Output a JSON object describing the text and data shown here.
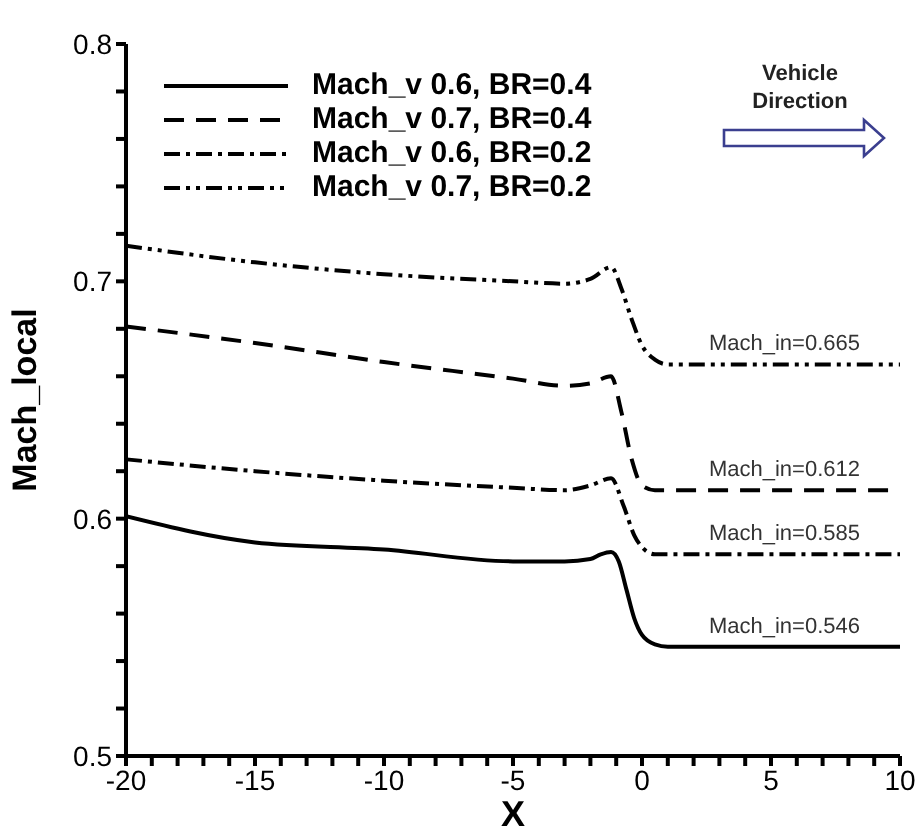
{
  "chart_data": {
    "type": "line",
    "xlabel": "X",
    "ylabel": "Mach_local",
    "xlim": [
      -20,
      10
    ],
    "ylim": [
      0.5,
      0.8
    ],
    "xticks": [
      -20,
      {
        "value": -19,
        "label": null
      },
      {
        "value": -18,
        "label": null
      },
      {
        "value": -17,
        "label": null
      },
      {
        "value": -16,
        "label": null
      },
      -15,
      {
        "value": -14,
        "label": null
      },
      {
        "value": -13,
        "label": null
      },
      {
        "value": -12,
        "label": null
      },
      {
        "value": -11,
        "label": null
      },
      -10,
      {
        "value": -9,
        "label": null
      },
      {
        "value": -8,
        "label": null
      },
      {
        "value": -7,
        "label": null
      },
      {
        "value": -6,
        "label": null
      },
      -5,
      {
        "value": -4,
        "label": null
      },
      {
        "value": -3,
        "label": null
      },
      {
        "value": -2,
        "label": null
      },
      {
        "value": -1,
        "label": null
      },
      0,
      {
        "value": 1,
        "label": null
      },
      {
        "value": 2,
        "label": null
      },
      {
        "value": 3,
        "label": null
      },
      {
        "value": 4,
        "label": null
      },
      5,
      {
        "value": 6,
        "label": null
      },
      {
        "value": 7,
        "label": null
      },
      {
        "value": 8,
        "label": null
      },
      {
        "value": 9,
        "label": null
      },
      10
    ],
    "yticks": [
      0.5,
      {
        "value": 0.52,
        "label": null
      },
      {
        "value": 0.54,
        "label": null
      },
      {
        "value": 0.56,
        "label": null
      },
      {
        "value": 0.58,
        "label": null
      },
      0.6,
      {
        "value": 0.62,
        "label": null
      },
      {
        "value": 0.64,
        "label": null
      },
      {
        "value": 0.66,
        "label": null
      },
      {
        "value": 0.68,
        "label": null
      },
      0.7,
      {
        "value": 0.72,
        "label": null
      },
      {
        "value": 0.74,
        "label": null
      },
      {
        "value": 0.76,
        "label": null
      },
      {
        "value": 0.78,
        "label": null
      },
      0.8
    ],
    "grid": false,
    "legend": "top left",
    "marker": "none",
    "series": [
      {
        "name": "Mach_v 0.6, BR=0.4",
        "color": "#000000",
        "line_style": "solid",
        "x": [
          -20,
          -15,
          -10,
          -5,
          -3,
          -2,
          -1.6,
          -1.2,
          -0.9,
          -0.6,
          -0.3,
          0,
          0.5,
          1,
          10
        ],
        "values": [
          0.601,
          0.59,
          0.587,
          0.582,
          0.582,
          0.583,
          0.585,
          0.586,
          0.582,
          0.57,
          0.558,
          0.551,
          0.547,
          0.546,
          0.546
        ]
      },
      {
        "name": "Mach_v 0.7, BR=0.4",
        "color": "#000000",
        "line_style": "dashed",
        "x": [
          -20,
          -15,
          -10,
          -5,
          -3,
          -2,
          -1.2,
          -0.8,
          -0.4,
          0,
          0.5,
          1,
          10
        ],
        "values": [
          0.681,
          0.674,
          0.666,
          0.659,
          0.656,
          0.657,
          0.66,
          0.645,
          0.625,
          0.614,
          0.612,
          0.612,
          0.612
        ]
      },
      {
        "name": "Mach_v 0.6, BR=0.2",
        "color": "#000000",
        "line_style": "dashdot",
        "x": [
          -20,
          -15,
          -10,
          -5,
          -3,
          -2,
          -1.2,
          -0.7,
          -0.3,
          0,
          0.5,
          1,
          10
        ],
        "values": [
          0.625,
          0.62,
          0.616,
          0.613,
          0.612,
          0.614,
          0.617,
          0.605,
          0.593,
          0.588,
          0.585,
          0.585,
          0.585
        ]
      },
      {
        "name": "Mach_v 0.7, BR=0.2",
        "color": "#000000",
        "line_style": "dashdotdot",
        "x": [
          -20,
          -15,
          -10,
          -5,
          -3,
          -2,
          -1.2,
          -0.8,
          -0.4,
          0,
          0.5,
          1,
          10
        ],
        "values": [
          0.715,
          0.708,
          0.703,
          0.7,
          0.699,
          0.701,
          0.706,
          0.697,
          0.684,
          0.673,
          0.667,
          0.665,
          0.665
        ]
      }
    ],
    "annotations": [
      {
        "text": "Mach_in=0.665",
        "y": 0.665
      },
      {
        "text": "Mach_in=0.612",
        "y": 0.612
      },
      {
        "text": "Mach_in=0.585",
        "y": 0.585
      },
      {
        "text": "Mach_in=0.546",
        "y": 0.546
      },
      "Vehicle Direction"
    ]
  }
}
